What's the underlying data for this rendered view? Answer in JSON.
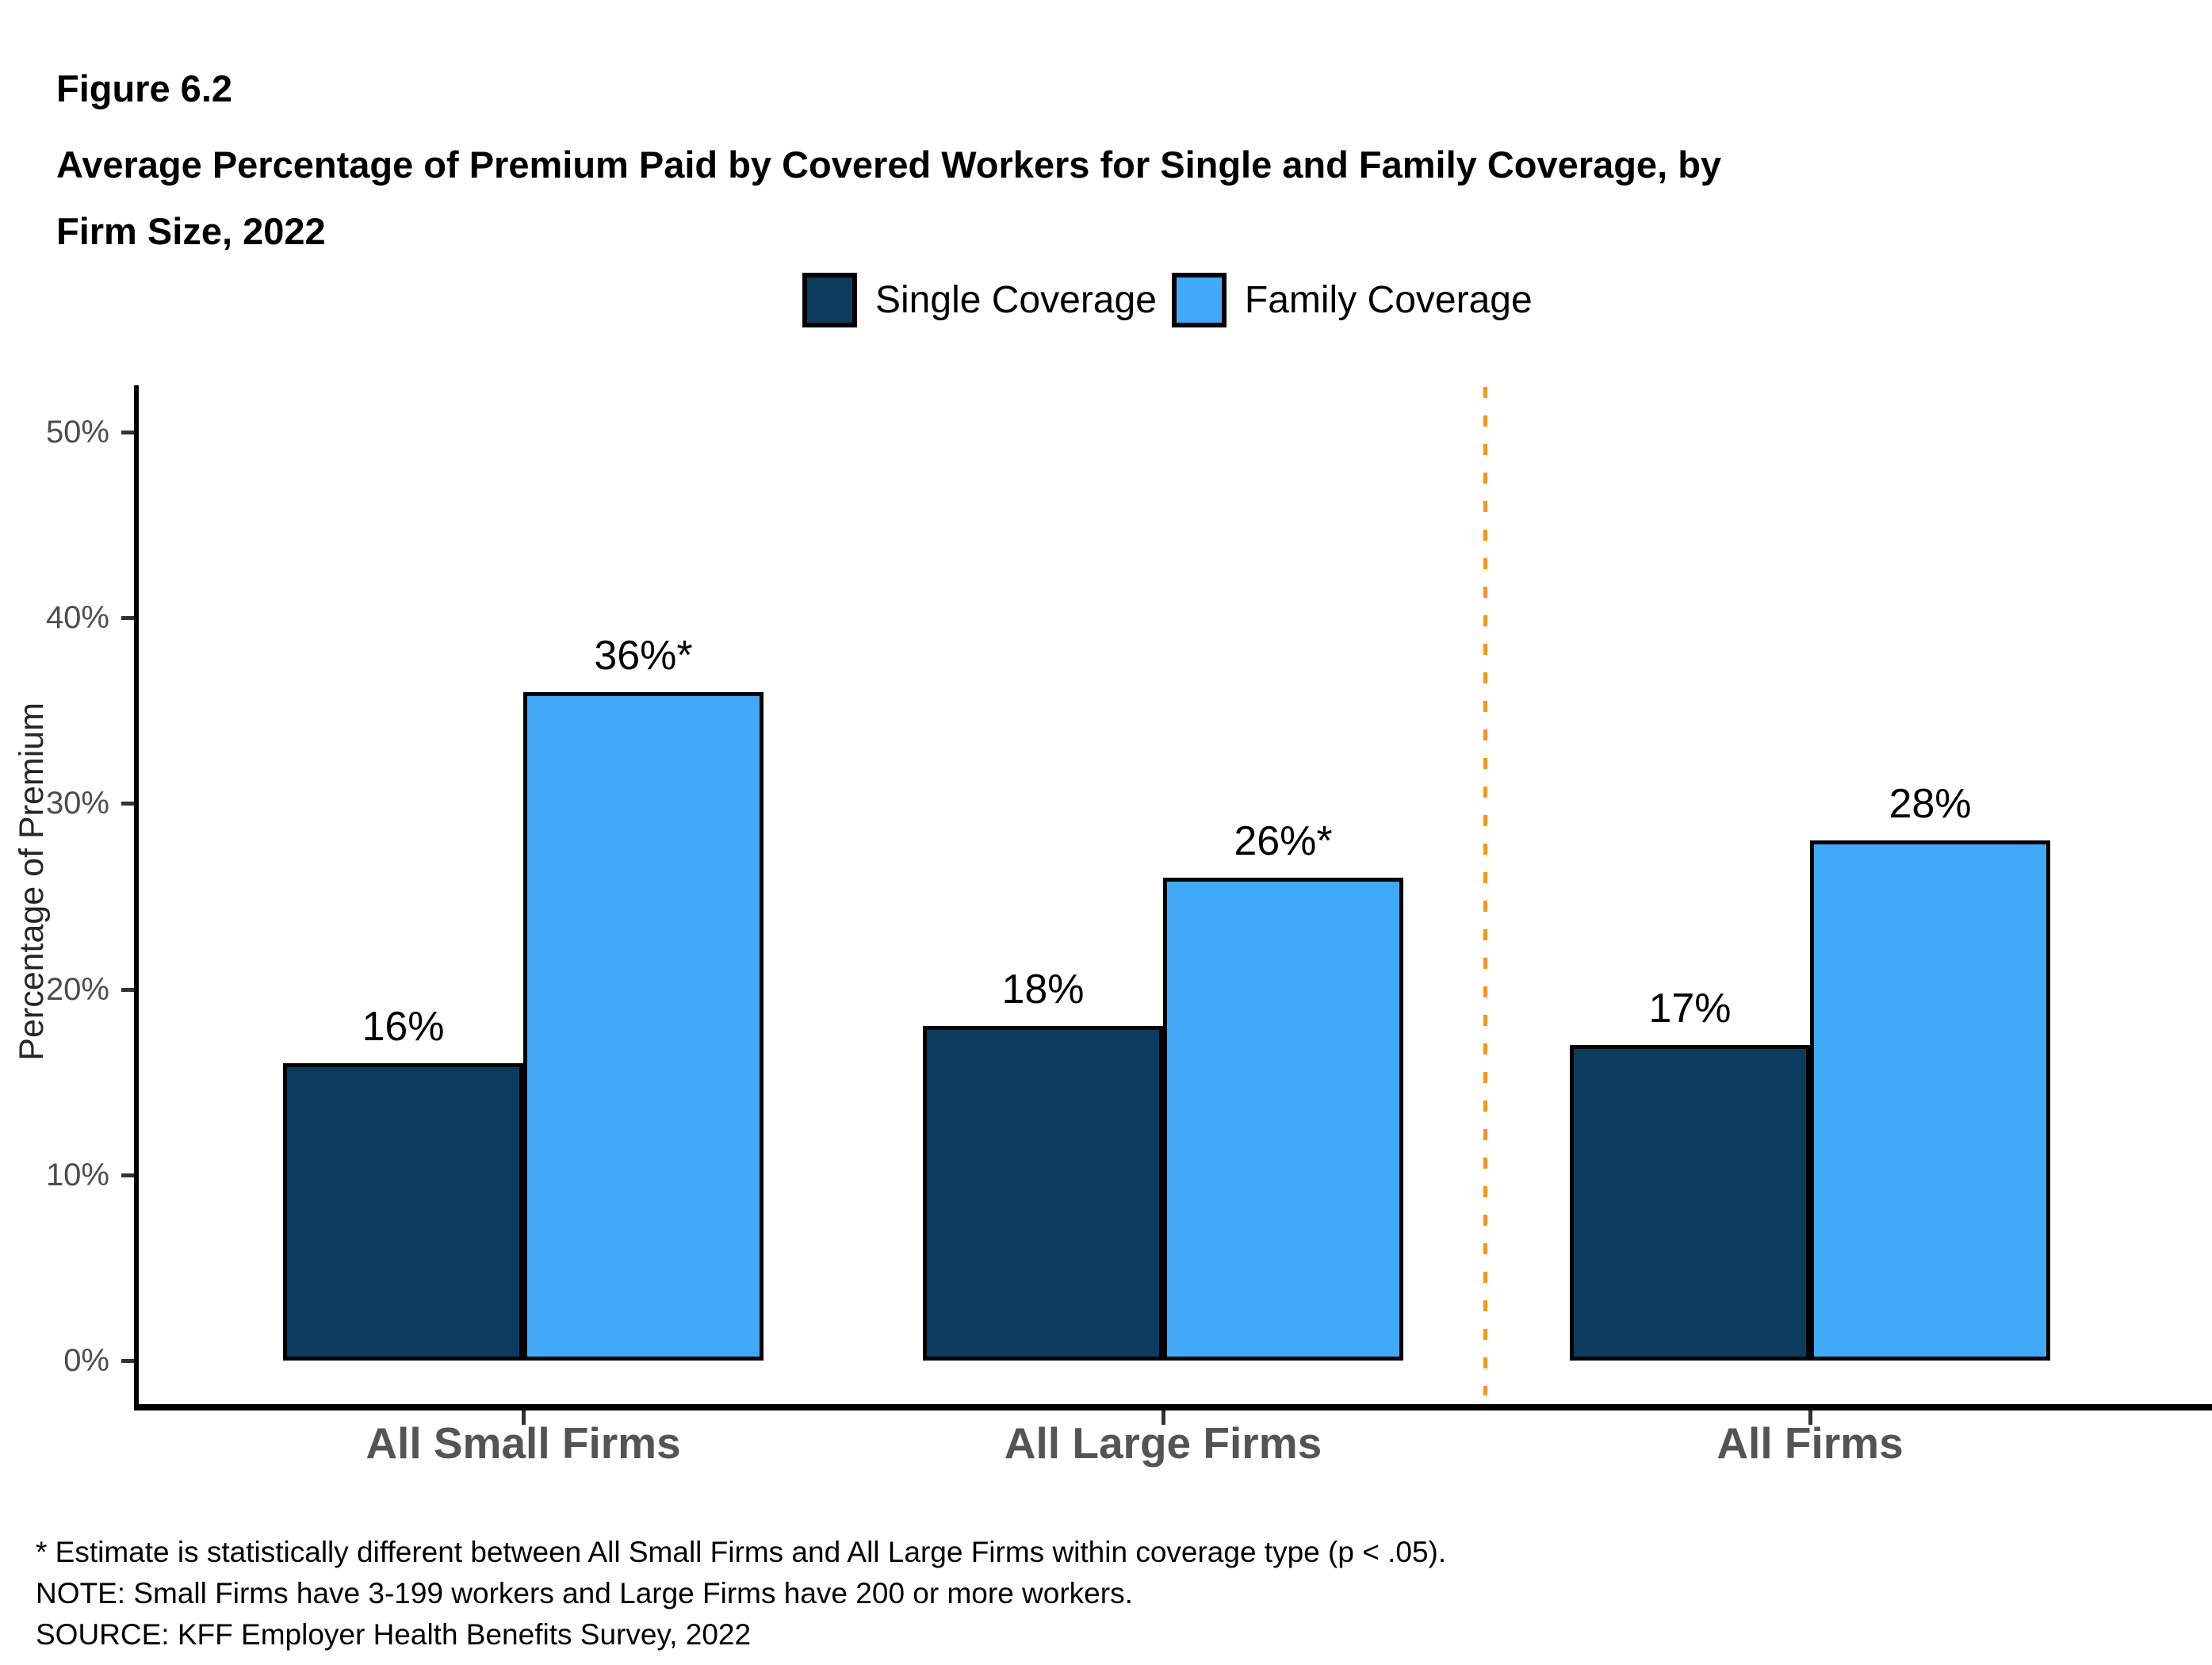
{
  "header": {
    "figure_label": "Figure 6.2",
    "title_lines": [
      "Average Percentage of Premium Paid by Covered Workers for Single and Family Coverage, by",
      "Firm Size, 2022"
    ]
  },
  "legend": {
    "items": [
      {
        "label": "Single Coverage",
        "color": "#0B3C5E"
      },
      {
        "label": "Family Coverage",
        "color": "#41AAF8"
      }
    ]
  },
  "axes": {
    "y_title": "Percentage of Premium",
    "y_tick_labels": [
      "0%",
      "10%",
      "20%",
      "30%",
      "40%",
      "50%"
    ],
    "x_labels": [
      "All Small Firms",
      "All Large Firms",
      "All Firms"
    ]
  },
  "chart_data": {
    "type": "bar",
    "title": "Figure 6.2 Average Percentage of Premium Paid by Covered Workers for Single and Family Coverage, by Firm Size, 2022",
    "categories": [
      "All Small Firms",
      "All Large Firms",
      "All Firms"
    ],
    "series": [
      {
        "name": "Single Coverage",
        "values": [
          16,
          18,
          17
        ],
        "data_labels": [
          "16%",
          "18%",
          "17%"
        ],
        "color": "#0B3C5E"
      },
      {
        "name": "Family Coverage",
        "values": [
          36,
          26,
          28
        ],
        "data_labels": [
          "36%*",
          "26%*",
          "28%"
        ],
        "color": "#41AAF8"
      }
    ],
    "xlabel": "",
    "ylabel": "Percentage of Premium",
    "ylim": [
      0,
      52
    ],
    "ytick_values": [
      0,
      10,
      20,
      30,
      40,
      50
    ],
    "grid": false,
    "legend_position": "top-center",
    "separator": {
      "before_category": "All Firms",
      "style": "dashed",
      "color": "#FA9412"
    }
  },
  "footnotes": {
    "lines": [
      "* Estimate is statistically different between All Small Firms and All Large Firms within coverage type (p < .05).",
      "NOTE: Small Firms have 3-199 workers and Large Firms have 200 or more workers.",
      "SOURCE: KFF Employer Health Benefits Survey, 2022"
    ]
  },
  "colors": {
    "single_coverage": "#0B3C5E",
    "family_coverage": "#41AAF8",
    "separator": "#FA9412",
    "axis_line": "#000000",
    "tick_label": "#4D4D4D",
    "category_label": "#545454"
  }
}
